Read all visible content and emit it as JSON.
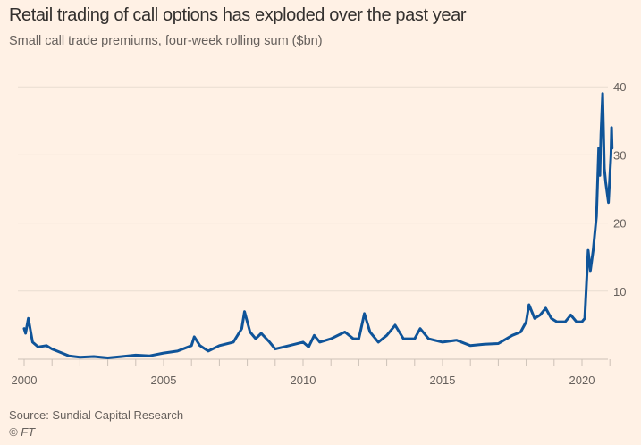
{
  "chart_data": {
    "type": "line",
    "title": "Retail trading of call options has exploded over the past year",
    "subtitle": "Small call trade premiums, four-week rolling sum ($bn)",
    "xlabel": "",
    "ylabel": "",
    "xlim": [
      2000,
      2021
    ],
    "ylim": [
      0,
      40
    ],
    "x_ticks": [
      "2000",
      "2005",
      "2010",
      "2015",
      "2020"
    ],
    "y_ticks": [
      "10",
      "20",
      "30",
      "40"
    ],
    "grid": true,
    "line_color": "#0f5499",
    "background": "#fff1e5",
    "series": [
      {
        "x": [
          2000.0,
          2000.05,
          2000.15,
          2000.3,
          2000.5,
          2000.8,
          2001.0,
          2001.3,
          2001.6,
          2002.0,
          2002.5,
          2003.0,
          2003.5,
          2004.0,
          2004.5,
          2005.0,
          2005.5,
          2006.0,
          2006.1,
          2006.3,
          2006.6,
          2007.0,
          2007.5,
          2007.8,
          2007.9,
          2008.1,
          2008.3,
          2008.5,
          2008.8,
          2009.0,
          2009.5,
          2010.0,
          2010.2,
          2010.4,
          2010.6,
          2011.0,
          2011.5,
          2011.8,
          2012.0,
          2012.2,
          2012.4,
          2012.7,
          2013.0,
          2013.3,
          2013.6,
          2014.0,
          2014.2,
          2014.5,
          2015.0,
          2015.5,
          2016.0,
          2016.5,
          2017.0,
          2017.5,
          2017.8,
          2018.0,
          2018.1,
          2018.3,
          2018.5,
          2018.7,
          2018.9,
          2019.1,
          2019.4,
          2019.6,
          2019.8,
          2020.0,
          2020.1,
          2020.22,
          2020.3,
          2020.4,
          2020.52,
          2020.6,
          2020.64,
          2020.68,
          2020.74,
          2020.8,
          2020.85,
          2020.95,
          2021.04,
          2021.06,
          2021.08
        ],
        "y": [
          4.5,
          3.8,
          6,
          2.5,
          1.8,
          2,
          1.5,
          1.0,
          0.5,
          0.3,
          0.4,
          0.2,
          0.4,
          0.6,
          0.5,
          0.9,
          1.2,
          2,
          3.3,
          2,
          1.2,
          2,
          2.5,
          4.5,
          7,
          4,
          3,
          3.8,
          2.5,
          1.5,
          2,
          2.5,
          1.8,
          3.5,
          2.5,
          3,
          4,
          3,
          3,
          6.7,
          4,
          2.5,
          3.5,
          5,
          3,
          3,
          4.5,
          3,
          2.5,
          2.8,
          2,
          2.2,
          2.3,
          3.5,
          4,
          5.5,
          8,
          6,
          6.5,
          7.5,
          6,
          5.5,
          5.5,
          6.5,
          5.5,
          5.5,
          6,
          16,
          13,
          16,
          21,
          31,
          27,
          33,
          39,
          28,
          26,
          23,
          30,
          34,
          31
        ]
      }
    ]
  },
  "footer": {
    "source": "Source: Sundial Capital Research",
    "copyright": "© FT"
  }
}
